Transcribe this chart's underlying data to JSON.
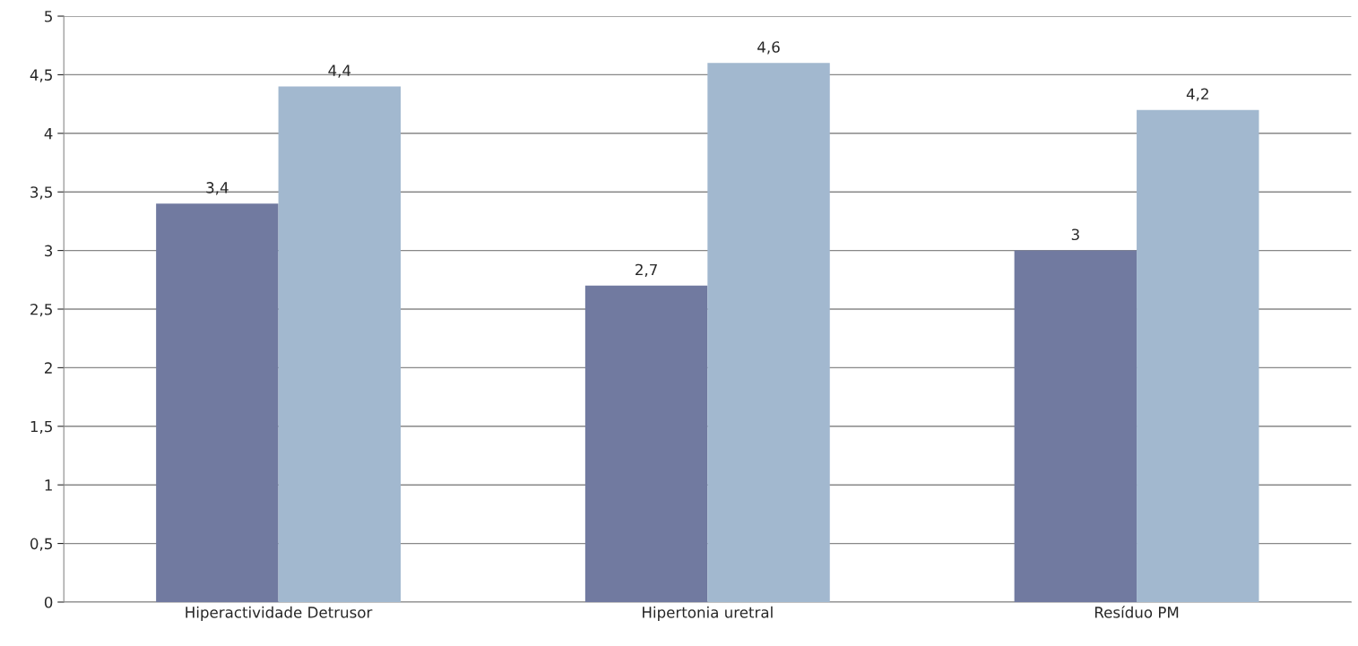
{
  "chart_data": {
    "type": "bar",
    "categories": [
      "Hiperactividade Detrusor",
      "Hipertonia uretral",
      "Resíduo PM"
    ],
    "series": [
      {
        "color": "#717aa0",
        "values": [
          3.4,
          2.7,
          3
        ],
        "value_labels": [
          "3,4",
          "2,7",
          "3"
        ]
      },
      {
        "color": "#a2b8cf",
        "values": [
          4.4,
          4.6,
          4.2
        ],
        "value_labels": [
          "4,4",
          "4,6",
          "4,2"
        ]
      }
    ],
    "ylim": [
      0,
      5
    ],
    "yticks": [
      0,
      {
        "value": 0.5,
        "label": "0,5"
      },
      1,
      {
        "value": 1.5,
        "label": "1,5"
      },
      2,
      {
        "value": 2.5,
        "label": "2,5"
      },
      3,
      {
        "value": 3.5,
        "label": "3,5"
      },
      4,
      {
        "value": 4.5,
        "label": "4,5"
      },
      5
    ],
    "grid": "y"
  }
}
